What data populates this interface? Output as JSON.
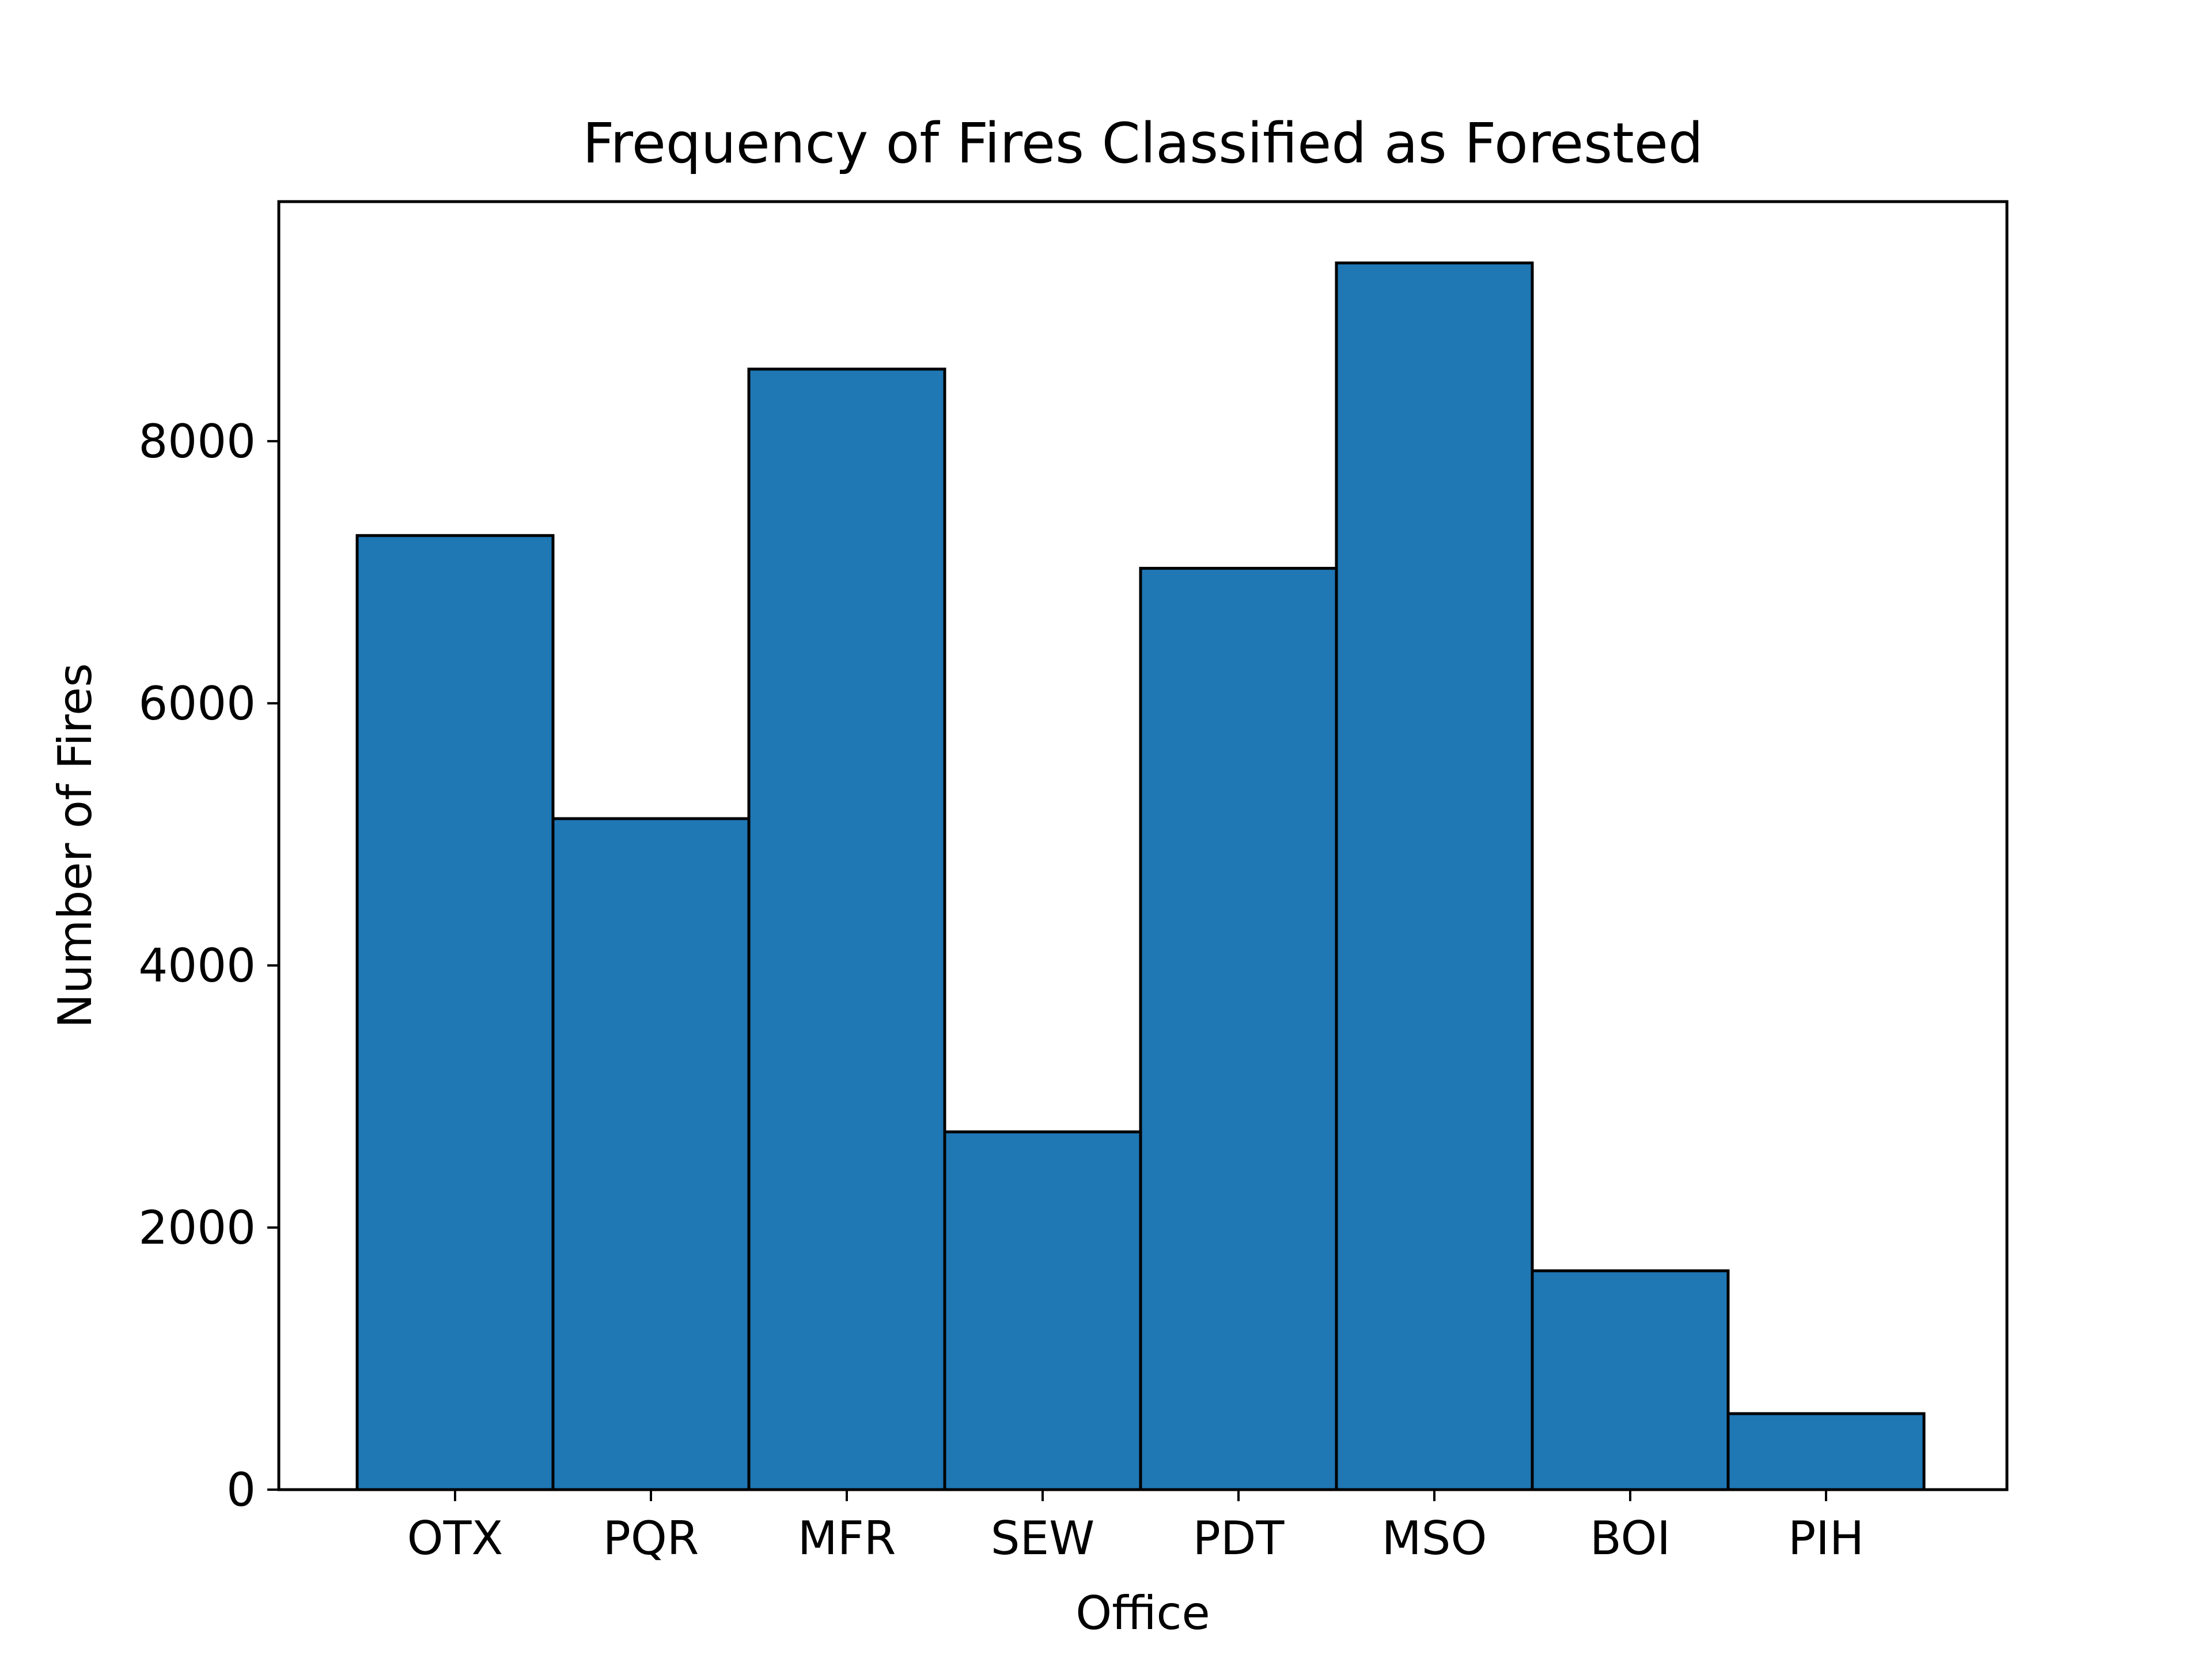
{
  "chart_data": {
    "type": "bar",
    "title": "Frequency of Fires Classified as Forested",
    "xlabel": "Office",
    "ylabel": "Number of Fires",
    "categories": [
      "OTX",
      "PQR",
      "MFR",
      "SEW",
      "PDT",
      "MSO",
      "BOI",
      "PIH"
    ],
    "values": [
      7280,
      5120,
      8550,
      2730,
      7030,
      9360,
      1670,
      580
    ],
    "yticks": [
      0,
      2000,
      4000,
      6000,
      8000
    ],
    "ytick_labels": [
      "0",
      "2000",
      "4000",
      "6000",
      "8000"
    ],
    "ylim": [
      0,
      9828
    ],
    "grid": false,
    "bar_color": "#1f77b4",
    "edge_color": "#000000"
  }
}
